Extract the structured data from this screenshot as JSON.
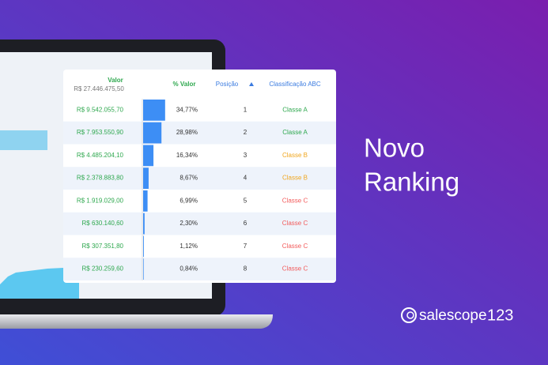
{
  "headline": {
    "line1": "Novo",
    "line2": "Ranking"
  },
  "brand": {
    "name": "salescope",
    "suffix": "123"
  },
  "table": {
    "columns": {
      "valor": "Valor",
      "total": "R$ 27.446.475,50",
      "share": "% Valor",
      "position": "Posição",
      "class": "Classificação ABC"
    },
    "rows": [
      {
        "valor": "R$ 9.542.055,70",
        "share": 34.77,
        "share_label": "34,77%",
        "position": 1,
        "class": "Classe A",
        "color": "#2fa84f"
      },
      {
        "valor": "R$ 7.953.550,90",
        "share": 28.98,
        "share_label": "28,98%",
        "position": 2,
        "class": "Classe A",
        "color": "#2fa84f"
      },
      {
        "valor": "R$ 4.485.204,10",
        "share": 16.34,
        "share_label": "16,34%",
        "position": 3,
        "class": "Classe B",
        "color": "#f0a61e"
      },
      {
        "valor": "R$ 2.378.883,80",
        "share": 8.67,
        "share_label": "8,67%",
        "position": 4,
        "class": "Classe B",
        "color": "#f0a61e"
      },
      {
        "valor": "R$ 1.919.029,00",
        "share": 6.99,
        "share_label": "6,99%",
        "position": 5,
        "class": "Classe C",
        "color": "#f25b5b"
      },
      {
        "valor": "R$ 630.140,60",
        "share": 2.3,
        "share_label": "2,30%",
        "position": 6,
        "class": "Classe C",
        "color": "#f25b5b"
      },
      {
        "valor": "R$ 307.351,80",
        "share": 1.12,
        "share_label": "1,12%",
        "position": 7,
        "class": "Classe C",
        "color": "#f25b5b"
      },
      {
        "valor": "R$ 230.259,60",
        "share": 0.84,
        "share_label": "0,84%",
        "position": 8,
        "class": "Classe C",
        "color": "#f25b5b"
      }
    ]
  }
}
